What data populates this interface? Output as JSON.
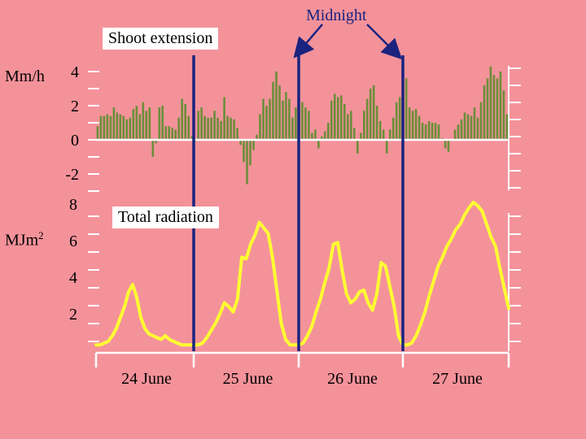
{
  "chart_data": [
    {
      "name": "shoot-extension",
      "type": "bar",
      "title": "Shoot extension",
      "ylabel": "Mm/h",
      "yticks": [
        "4",
        "2",
        "0",
        "-2"
      ],
      "ylim": [
        -3,
        4.5
      ],
      "hours_per_day": 24,
      "values": [
        0.8,
        1.4,
        1.4,
        1.5,
        1.4,
        1.9,
        1.6,
        1.5,
        1.4,
        1.2,
        1.3,
        1.8,
        2.0,
        1.5,
        2.2,
        1.7,
        1.9,
        -1.0,
        -0.2,
        1.9,
        2.0,
        0.8,
        0.8,
        0.7,
        0.6,
        1.3,
        2.4,
        2.1,
        1.4,
        0.2,
        -0.1,
        1.7,
        1.9,
        1.4,
        1.3,
        1.3,
        1.7,
        1.3,
        1.1,
        2.5,
        1.4,
        1.3,
        1.2,
        0.7,
        -0.3,
        -1.3,
        -2.6,
        -1.5,
        -0.6,
        0.3,
        1.5,
        2.4,
        2.0,
        2.4,
        3.4,
        4.0,
        3.2,
        2.3,
        2.8,
        2.4,
        1.3,
        1.9,
        2.1,
        2.2,
        1.9,
        1.7,
        0.4,
        0.6,
        -0.5,
        0.2,
        0.5,
        1.0,
        2.3,
        2.7,
        2.5,
        2.6,
        2.1,
        1.5,
        1.7,
        0.7,
        -0.8,
        0.4,
        1.7,
        2.4,
        3.0,
        3.2,
        2.0,
        1.1,
        0.6,
        -0.8,
        0.6,
        1.3,
        2.2,
        2.5,
        3.3,
        3.6,
        1.9,
        1.7,
        1.8,
        1.4,
        1.0,
        0.9,
        1.1,
        1.0,
        1.0,
        0.9,
        0.1,
        -0.5,
        -0.7,
        0.0,
        0.6,
        0.9,
        1.2,
        1.6,
        1.5,
        1.4,
        1.9,
        1.3,
        2.2,
        3.2,
        3.6,
        4.3,
        3.8,
        3.6,
        4.0,
        2.9,
        1.5
      ]
    },
    {
      "name": "total-radiation",
      "type": "line",
      "title": "Total radiation",
      "ylabel": "MJm",
      "ylabel_superscript": "2",
      "yticks": [
        "8",
        "6",
        "4",
        "2"
      ],
      "ylim": [
        0,
        8.2
      ],
      "x_unit": "hours since midnight before 24 June",
      "x": [
        0,
        1,
        2,
        3,
        4,
        5,
        6,
        7,
        8,
        9,
        10,
        11,
        12,
        13,
        14,
        15,
        16,
        17,
        18,
        19,
        20,
        21,
        22,
        23,
        24,
        25,
        26,
        27,
        28,
        29,
        30,
        31,
        32,
        33,
        34,
        35,
        36,
        37,
        38,
        39,
        40,
        41,
        42,
        43,
        44,
        45,
        46,
        47,
        48,
        49,
        50,
        51,
        52,
        53,
        54,
        55,
        56,
        57,
        58,
        59,
        60,
        61,
        62,
        63,
        64,
        65,
        66,
        67,
        68,
        69,
        70,
        71,
        72,
        73,
        74,
        75,
        76,
        77,
        78,
        79,
        80,
        81,
        82,
        83,
        84,
        85,
        86,
        87,
        88,
        89,
        90,
        91,
        92,
        93,
        94,
        95,
        96
      ],
      "y": [
        0.3,
        0.3,
        0.4,
        0.5,
        0.8,
        1.2,
        1.8,
        2.4,
        3.2,
        3.6,
        2.9,
        1.8,
        1.2,
        0.9,
        0.8,
        0.7,
        0.6,
        0.8,
        0.6,
        0.5,
        0.4,
        0.3,
        0.3,
        0.3,
        0.3,
        0.3,
        0.4,
        0.7,
        1.1,
        1.5,
        2.0,
        2.6,
        2.4,
        2.1,
        2.8,
        5.1,
        5.0,
        5.8,
        6.3,
        7.0,
        6.7,
        6.4,
        5.1,
        3.3,
        1.5,
        0.6,
        0.3,
        0.3,
        0.3,
        0.4,
        0.8,
        1.3,
        2.1,
        2.8,
        3.7,
        4.5,
        5.8,
        5.9,
        4.4,
        3.1,
        2.6,
        2.8,
        3.2,
        3.3,
        2.6,
        2.2,
        3.1,
        4.8,
        4.6,
        3.5,
        2.4,
        0.8,
        0.3,
        0.3,
        0.4,
        0.8,
        1.4,
        2.1,
        3.0,
        3.8,
        4.6,
        5.1,
        5.7,
        6.1,
        6.6,
        6.9,
        7.4,
        7.8,
        8.1,
        7.9,
        7.6,
        6.9,
        6.2,
        5.7,
        4.5,
        3.4,
        2.3
      ],
      "day_labels": [
        "24 June",
        "25 June",
        "26 June",
        "27 June"
      ]
    }
  ],
  "annotations": {
    "midnight": "Midnight"
  },
  "colors": {
    "background": "#f4929a",
    "bar": "#6b8e3a",
    "line": "#ffff33",
    "midnight_line": "#1a237e",
    "axis": "#ffffff"
  }
}
